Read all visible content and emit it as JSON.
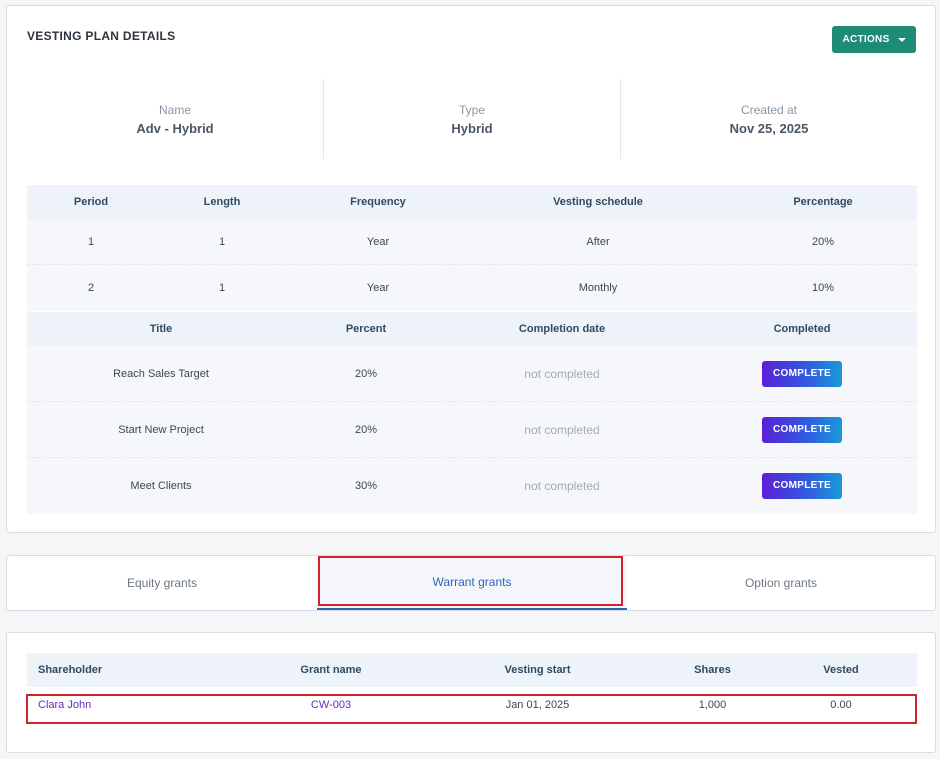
{
  "plan": {
    "title": "VESTING PLAN DETAILS",
    "actions_label": "ACTIONS",
    "info": [
      {
        "label": "Name",
        "value": "Adv - Hybrid"
      },
      {
        "label": "Type",
        "value": "Hybrid"
      },
      {
        "label": "Created at",
        "value": "Nov 25, 2025"
      }
    ],
    "periods": {
      "headers": [
        "Period",
        "Length",
        "Frequency",
        "Vesting schedule",
        "Percentage"
      ],
      "rows": [
        [
          "1",
          "1",
          "Year",
          "After",
          "20%"
        ],
        [
          "2",
          "1",
          "Year",
          "Monthly",
          "10%"
        ]
      ]
    },
    "milestones": {
      "headers": [
        "Title",
        "Percent",
        "Completion date",
        "Completed"
      ],
      "rows": [
        {
          "title": "Reach Sales Target",
          "percent": "20%",
          "completion": "not completed",
          "button": "COMPLETE"
        },
        {
          "title": "Start New Project",
          "percent": "20%",
          "completion": "not completed",
          "button": "COMPLETE"
        },
        {
          "title": "Meet Clients",
          "percent": "30%",
          "completion": "not completed",
          "button": "COMPLETE"
        }
      ]
    }
  },
  "tabs": [
    {
      "label": "Equity grants"
    },
    {
      "label": "Warrant grants"
    },
    {
      "label": "Option grants"
    }
  ],
  "grants": {
    "headers": [
      "Shareholder",
      "Grant name",
      "Vesting start",
      "Shares",
      "Vested"
    ],
    "rows": [
      {
        "shareholder": "Clara John",
        "grant_name": "CW-003",
        "vesting_start": "Jan 01, 2025",
        "shares": "1,000",
        "vested": "0.00"
      }
    ]
  },
  "colors": {
    "accent": "#1d8b77",
    "highlight": "#d0242b",
    "link": "#6a2cc4"
  }
}
